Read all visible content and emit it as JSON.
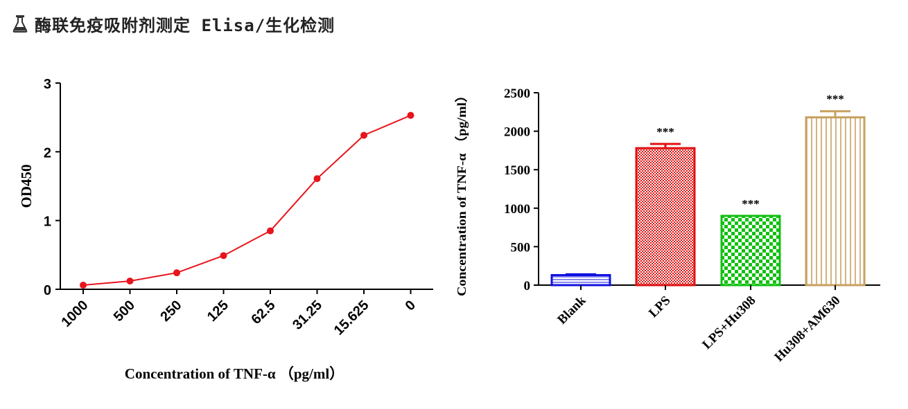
{
  "header": {
    "title": "酶联免疫吸附剂测定 Elisa/生化检测",
    "icon": "flask-icon"
  },
  "chart_data": [
    {
      "type": "line",
      "xlabel": "Concentration of TNF-α （pg/ml）",
      "ylabel": "OD450",
      "categories": [
        "1000",
        "500",
        "250",
        "125",
        "62.5",
        "31.25",
        "15.625",
        "0"
      ],
      "series": [
        {
          "values": [
            0.06,
            0.12,
            0.24,
            0.49,
            0.85,
            1.61,
            2.24,
            2.53
          ],
          "color": "#e8141c"
        }
      ],
      "ylim": [
        0,
        3
      ],
      "yticks": [
        "0",
        "1",
        "2",
        "3"
      ],
      "grid": false
    },
    {
      "type": "bar",
      "ylabel": "Concentration of TNF-α （pg/ml）",
      "categories": [
        "Blank",
        "LPS",
        "LPS+Hu308",
        "Hu308+AM630"
      ],
      "values": [
        130,
        1780,
        900,
        2180
      ],
      "errors": [
        10,
        55,
        0,
        80
      ],
      "colors": [
        "#1010e0",
        "#e01010",
        "#10c010",
        "#c8a060"
      ],
      "annotations": [
        "",
        "***",
        "***",
        "***"
      ],
      "ylim": [
        0,
        2500
      ],
      "yticks": [
        "0",
        "500",
        "1000",
        "1500",
        "2000",
        "2500"
      ],
      "grid": false
    }
  ]
}
